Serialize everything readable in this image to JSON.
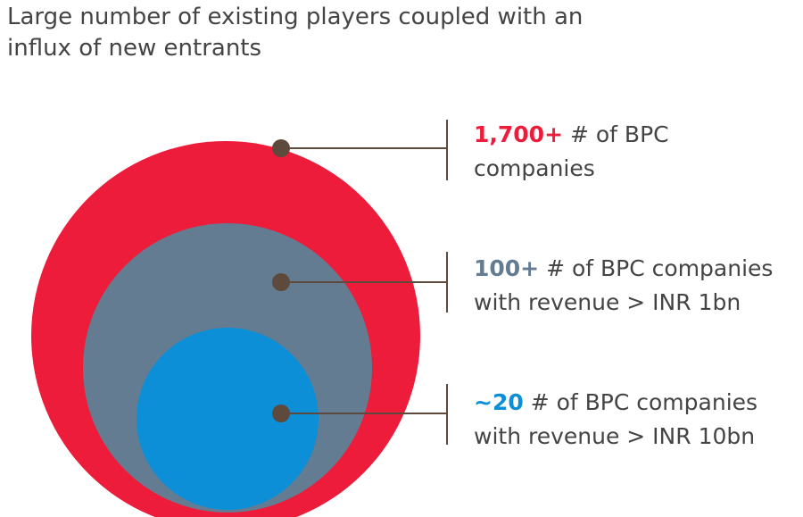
{
  "title": {
    "line1": "Large number of existing players coupled with an",
    "line2": "influx of new entrants"
  },
  "levels": [
    {
      "value": "1,700+",
      "text1": " # of BPC",
      "text2": "companies",
      "color": "#ec1c3a"
    },
    {
      "value": "100+",
      "text1": " # of BPC companies",
      "text2": "with revenue > INR 1bn",
      "color": "#647c92"
    },
    {
      "value": "~20",
      "text1": " # of BPC companies",
      "text2": "with revenue > INR 10bn",
      "color": "#0c8fd6"
    }
  ],
  "connector_color": "#5e4a3c"
}
